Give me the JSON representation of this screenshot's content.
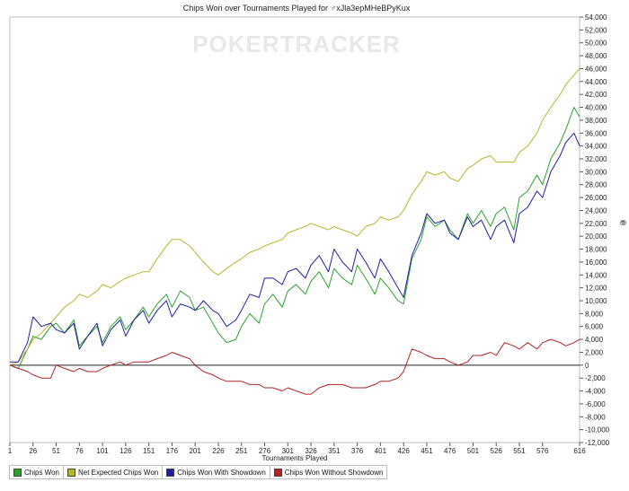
{
  "chart_data": {
    "type": "line",
    "title": "Chips Won over Tournaments Played for ",
    "player": "xJla3epMHeBPyKux",
    "xlabel": "Tournaments Played",
    "ylabel": "",
    "watermark": "POKERTRACKER",
    "xlim": [
      1,
      616
    ],
    "ylim": [
      -12000,
      54000
    ],
    "x_ticks": [
      1,
      26,
      51,
      76,
      101,
      126,
      151,
      176,
      201,
      226,
      251,
      276,
      301,
      326,
      351,
      376,
      401,
      426,
      451,
      476,
      501,
      526,
      551,
      576,
      616
    ],
    "y_ticks": [
      -12000,
      -10000,
      -8000,
      -6000,
      -4000,
      -2000,
      0,
      2000,
      4000,
      6000,
      8000,
      10000,
      12000,
      14000,
      16000,
      18000,
      20000,
      22000,
      24000,
      26000,
      28000,
      30000,
      32000,
      34000,
      36000,
      38000,
      40000,
      42000,
      44000,
      46000,
      48000,
      50000,
      52000,
      54000
    ],
    "y_tick_labels": [
      "-12,000",
      "-10,000",
      "-8,000",
      "-6,000",
      "-4,000",
      "-2,000",
      "0",
      "2,000",
      "4,000",
      "6,000",
      "8,000",
      "10,000",
      "12,000",
      "14,000",
      "16,000",
      "18,000",
      "20,000",
      "22,000",
      "24,000",
      "26,000",
      "28,000",
      "30,000",
      "32,000",
      "34,000",
      "36,000",
      "38,000",
      "40,000",
      "42,000",
      "44,000",
      "46,000",
      "48,000",
      "50,000",
      "52,000",
      "54,000"
    ],
    "grid": false,
    "legend_position": "bottom-left",
    "series": [
      {
        "name": "Chips Won",
        "color": "#2ca02c",
        "x": [
          1,
          10,
          20,
          26,
          35,
          45,
          51,
          60,
          70,
          76,
          85,
          95,
          101,
          110,
          120,
          126,
          135,
          145,
          151,
          160,
          170,
          176,
          185,
          195,
          201,
          210,
          220,
          226,
          235,
          245,
          251,
          260,
          270,
          276,
          285,
          295,
          301,
          310,
          320,
          326,
          335,
          345,
          351,
          360,
          370,
          376,
          385,
          395,
          401,
          410,
          420,
          426,
          435,
          445,
          451,
          460,
          470,
          476,
          485,
          495,
          501,
          510,
          520,
          526,
          535,
          545,
          551,
          560,
          570,
          576,
          585,
          595,
          601,
          610,
          616
        ],
        "values": [
          0,
          -500,
          2500,
          4500,
          4000,
          6000,
          6500,
          5000,
          7000,
          3000,
          4500,
          6000,
          3500,
          6000,
          7500,
          5500,
          7000,
          9000,
          7500,
          9500,
          11000,
          9000,
          11500,
          10500,
          8500,
          9000,
          6500,
          5000,
          3500,
          4000,
          6000,
          8000,
          6500,
          9500,
          11000,
          9000,
          11500,
          12500,
          11000,
          13000,
          14500,
          12000,
          15000,
          13500,
          12500,
          15500,
          13500,
          11000,
          13500,
          12000,
          10000,
          9500,
          16500,
          19500,
          23000,
          21500,
          22500,
          21000,
          19500,
          23500,
          22000,
          24000,
          21500,
          23500,
          24500,
          21000,
          26000,
          27000,
          29500,
          28000,
          32000,
          34500,
          36500,
          40000,
          38500
        ]
      },
      {
        "name": "Net Expected Chips Won",
        "color": "#b5b530",
        "x": [
          1,
          10,
          20,
          26,
          35,
          45,
          51,
          60,
          70,
          76,
          85,
          95,
          101,
          110,
          120,
          126,
          135,
          145,
          151,
          160,
          170,
          176,
          185,
          195,
          201,
          210,
          220,
          226,
          235,
          245,
          251,
          260,
          270,
          276,
          285,
          295,
          301,
          310,
          320,
          326,
          335,
          345,
          351,
          360,
          370,
          376,
          385,
          395,
          401,
          410,
          420,
          426,
          435,
          445,
          451,
          460,
          470,
          476,
          485,
          495,
          501,
          510,
          520,
          526,
          535,
          545,
          551,
          560,
          570,
          576,
          585,
          595,
          601,
          610,
          616
        ],
        "values": [
          0,
          500,
          2500,
          4000,
          5000,
          6500,
          7500,
          9000,
          10000,
          11000,
          10500,
          11500,
          12500,
          12000,
          13000,
          13500,
          14000,
          14500,
          14500,
          16500,
          18500,
          19500,
          19500,
          18500,
          17500,
          16000,
          14500,
          14000,
          15000,
          16000,
          16500,
          17500,
          18000,
          18500,
          19000,
          19500,
          20500,
          21000,
          21500,
          22000,
          21500,
          21000,
          21500,
          21000,
          20500,
          20000,
          21500,
          22000,
          23000,
          22500,
          23000,
          24000,
          26500,
          28500,
          30000,
          29500,
          30000,
          29000,
          28500,
          30500,
          31000,
          32000,
          32500,
          31500,
          31500,
          31500,
          33000,
          34000,
          36000,
          38000,
          40000,
          42000,
          43500,
          45000,
          46000
        ]
      },
      {
        "name": "Chips Won With Showdown",
        "color": "#1f1f9f",
        "x": [
          1,
          10,
          20,
          26,
          35,
          45,
          51,
          60,
          70,
          76,
          85,
          95,
          101,
          110,
          120,
          126,
          135,
          145,
          151,
          160,
          170,
          176,
          185,
          195,
          201,
          210,
          220,
          226,
          235,
          245,
          251,
          260,
          270,
          276,
          285,
          295,
          301,
          310,
          320,
          326,
          335,
          345,
          351,
          360,
          370,
          376,
          385,
          395,
          401,
          410,
          420,
          426,
          435,
          445,
          451,
          460,
          470,
          476,
          485,
          495,
          501,
          510,
          520,
          526,
          535,
          545,
          551,
          560,
          570,
          576,
          585,
          595,
          601,
          610,
          616
        ],
        "values": [
          500,
          500,
          3500,
          7500,
          6000,
          6500,
          5500,
          5000,
          6500,
          2500,
          4500,
          6500,
          3000,
          5500,
          7000,
          4500,
          7000,
          8500,
          6500,
          8500,
          10000,
          7500,
          9500,
          9000,
          8500,
          10000,
          8500,
          8000,
          6000,
          7000,
          8500,
          11000,
          10500,
          13500,
          13500,
          12500,
          14500,
          15000,
          13500,
          15500,
          17000,
          14500,
          18000,
          16000,
          14500,
          18000,
          16000,
          13500,
          16500,
          14500,
          12000,
          10500,
          17000,
          20500,
          23500,
          22000,
          22500,
          20500,
          19500,
          23000,
          21500,
          22500,
          19500,
          21500,
          22500,
          19000,
          23500,
          24500,
          27000,
          26000,
          30000,
          32500,
          34500,
          36000,
          34000
        ]
      },
      {
        "name": "Chips Won Without Showdown",
        "color": "#b22222",
        "x": [
          1,
          10,
          20,
          26,
          35,
          45,
          51,
          60,
          70,
          76,
          85,
          95,
          101,
          110,
          120,
          126,
          135,
          145,
          151,
          160,
          170,
          176,
          185,
          195,
          201,
          210,
          220,
          226,
          235,
          245,
          251,
          260,
          270,
          276,
          285,
          295,
          301,
          310,
          320,
          326,
          335,
          345,
          351,
          360,
          370,
          376,
          385,
          395,
          401,
          410,
          420,
          426,
          435,
          445,
          451,
          460,
          470,
          476,
          485,
          495,
          501,
          510,
          520,
          526,
          535,
          545,
          551,
          560,
          570,
          576,
          585,
          595,
          601,
          610,
          616
        ],
        "values": [
          0,
          -500,
          -1000,
          -1500,
          -2000,
          -2000,
          0,
          -500,
          -1000,
          -500,
          -1000,
          -1000,
          -500,
          0,
          500,
          0,
          500,
          500,
          500,
          1000,
          1500,
          2000,
          1500,
          1000,
          0,
          -1000,
          -1500,
          -2000,
          -2500,
          -2500,
          -2500,
          -3000,
          -3000,
          -3500,
          -3500,
          -4000,
          -3500,
          -4000,
          -4500,
          -4500,
          -3500,
          -3000,
          -3000,
          -3000,
          -3500,
          -3500,
          -3500,
          -3000,
          -2500,
          -2500,
          -2000,
          -1000,
          2500,
          2000,
          1500,
          1000,
          1000,
          500,
          0,
          500,
          1500,
          1500,
          2000,
          1500,
          3500,
          3000,
          2500,
          3500,
          2500,
          3500,
          4000,
          3500,
          3000,
          3500,
          4000
        ]
      }
    ]
  },
  "legend": {
    "items": [
      {
        "label": "Chips Won",
        "color": "#2ca02c"
      },
      {
        "label": "Net Expected Chips Won",
        "color": "#b5b530"
      },
      {
        "label": "Chips Won With Showdown",
        "color": "#1f1f9f"
      },
      {
        "label": "Chips Won Without Showdown",
        "color": "#b22222"
      }
    ]
  }
}
